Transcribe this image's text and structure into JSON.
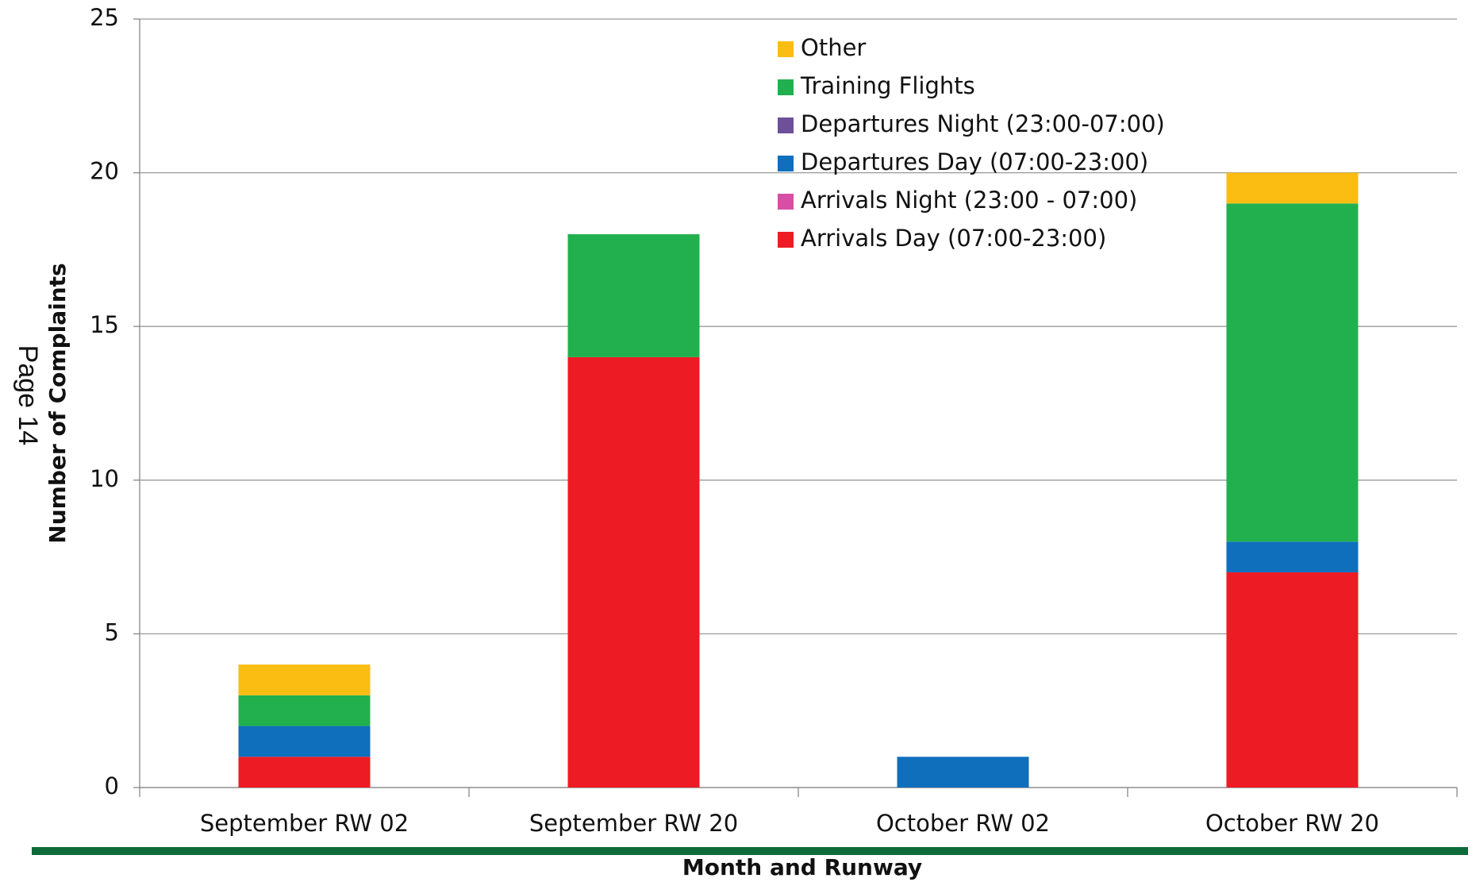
{
  "page_note": "Page 14",
  "chart_data": {
    "type": "bar",
    "stacked": true,
    "xlabel": "Month and Runway",
    "ylabel": "Number of Complaints",
    "categories": [
      "September RW 02",
      "September RW 20",
      "October RW 02",
      "October RW 20"
    ],
    "series": [
      {
        "name": "Arrivals Day (07:00-23:00)",
        "color": "#ed1c24",
        "values": [
          1,
          14,
          0,
          7
        ]
      },
      {
        "name": "Arrivals Night (23:00 - 07:00)",
        "color": "#d64fa4",
        "values": [
          0,
          0,
          0,
          0
        ]
      },
      {
        "name": "Departures Day  (07:00-23:00)",
        "color": "#0f6fbc",
        "values": [
          1,
          0,
          1,
          1
        ]
      },
      {
        "name": "Departures Night (23:00-07:00)",
        "color": "#6d4f9a",
        "values": [
          0,
          0,
          0,
          0
        ]
      },
      {
        "name": "Training Flights",
        "color": "#22b04f",
        "values": [
          1,
          4,
          0,
          11
        ]
      },
      {
        "name": "Other",
        "color": "#fbbd12",
        "values": [
          1,
          0,
          0,
          1
        ]
      }
    ],
    "ylim": [
      0,
      25
    ],
    "yticks": [
      0,
      5,
      10,
      15,
      20,
      25
    ],
    "grid": true,
    "legend": "upper center"
  }
}
